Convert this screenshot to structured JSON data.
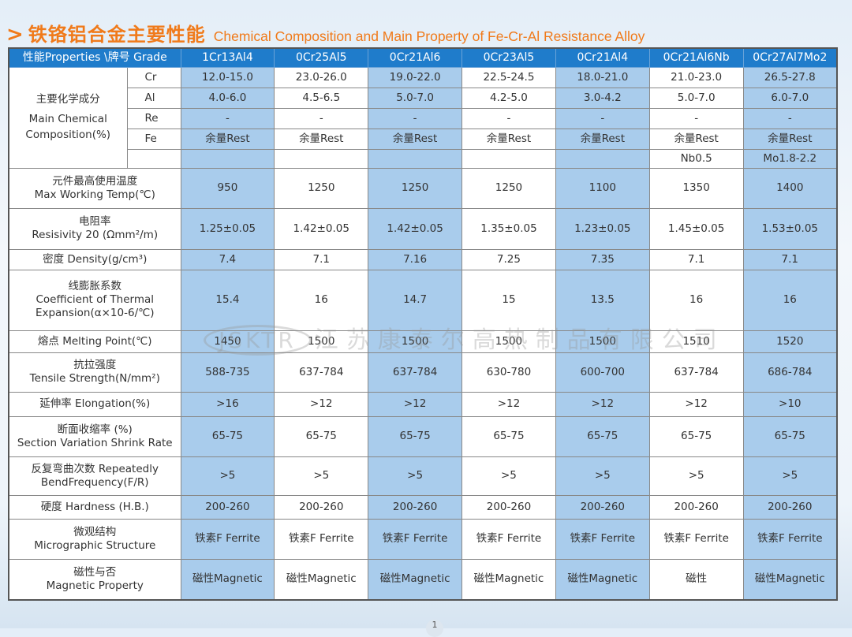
{
  "title": {
    "cn": "铁铬铝合金主要性能",
    "en": "Chemical Composition and Main Property of Fe-Cr-Al Resistance Alloy"
  },
  "header": {
    "label": "性能Properties \\牌号 Grade",
    "grades": [
      "1Cr13Al4",
      "0Cr25Al5",
      "0Cr21Al6",
      "0Cr23Al5",
      "0Cr21Al4",
      "0Cr21Al6Nb",
      "0Cr27Al7Mo2"
    ]
  },
  "composition": {
    "label_cn": "主要化学成分",
    "label_en1": "Main Chemical",
    "label_en2": "Composition(%)",
    "rows": [
      {
        "element": "Cr",
        "values": [
          "12.0-15.0",
          "23.0-26.0",
          "19.0-22.0",
          "22.5-24.5",
          "18.0-21.0",
          "21.0-23.0",
          "26.5-27.8"
        ]
      },
      {
        "element": "Al",
        "values": [
          "4.0-6.0",
          "4.5-6.5",
          "5.0-7.0",
          "4.2-5.0",
          "3.0-4.2",
          "5.0-7.0",
          "6.0-7.0"
        ]
      },
      {
        "element": "Re",
        "values": [
          "-",
          "-",
          "-",
          "-",
          "-",
          "-",
          "-"
        ]
      },
      {
        "element": "Fe",
        "values": [
          "余量Rest",
          "余量Rest",
          "余量Rest",
          "余量Rest",
          "余量Rest",
          "余量Rest",
          "余量Rest"
        ]
      },
      {
        "element": "",
        "values": [
          "",
          "",
          "",
          "",
          "",
          "Nb0.5",
          "Mo1.8-2.2"
        ]
      }
    ]
  },
  "properties": [
    {
      "cn": "元件最高使用温度",
      "en": "Max Working Temp(℃)",
      "values": [
        "950",
        "1250",
        "1250",
        "1250",
        "1100",
        "1350",
        "1400"
      ]
    },
    {
      "cn": "电阻率",
      "en": "Resisivity 20 (Ωmm²/m)",
      "values": [
        "1.25±0.05",
        "1.42±0.05",
        "1.42±0.05",
        "1.35±0.05",
        "1.23±0.05",
        "1.45±0.05",
        "1.53±0.05"
      ]
    },
    {
      "cn": "密度  Density(g/cm³)",
      "en": "",
      "values": [
        "7.4",
        "7.1",
        "7.16",
        "7.25",
        "7.35",
        "7.1",
        "7.1"
      ]
    },
    {
      "cn": "线膨胀系数",
      "en": "Coefficient of Thermal Expansion(α×10-6/℃)",
      "values": [
        "15.4",
        "16",
        "14.7",
        "15",
        "13.5",
        "16",
        "16"
      ]
    },
    {
      "cn": "熔点  Melting Point(℃)",
      "en": "",
      "values": [
        "1450",
        "1500",
        "1500",
        "1500",
        "1500",
        "1510",
        "1520"
      ]
    },
    {
      "cn": "抗拉强度",
      "en": "Tensile Strength(N/mm²)",
      "values": [
        "588-735",
        "637-784",
        "637-784",
        "630-780",
        "600-700",
        "637-784",
        "686-784"
      ]
    },
    {
      "cn": "延伸率  Elongation(%)",
      "en": "",
      "values": [
        ">16",
        ">12",
        ">12",
        ">12",
        ">12",
        ">12",
        ">10"
      ]
    },
    {
      "cn": "断面收缩率  (%)",
      "en": "Section Variation Shrink Rate",
      "values": [
        "65-75",
        "65-75",
        "65-75",
        "65-75",
        "65-75",
        "65-75",
        "65-75"
      ]
    },
    {
      "cn": "反复弯曲次数  Repeatedly",
      "en": "BendFrequency(F/R)",
      "values": [
        ">5",
        ">5",
        ">5",
        ">5",
        ">5",
        ">5",
        ">5"
      ]
    },
    {
      "cn": "硬度  Hardness (H.B.)",
      "en": "",
      "values": [
        "200-260",
        "200-260",
        "200-260",
        "200-260",
        "200-260",
        "200-260",
        "200-260"
      ]
    },
    {
      "cn": "微观结构",
      "en": "Micrographic Structure",
      "values": [
        "铁素F Ferrite",
        "铁素F Ferrite",
        "铁素F Ferrite",
        "铁素F Ferrite",
        "铁素F Ferrite",
        "铁素F Ferrite",
        "铁素F Ferrite"
      ]
    },
    {
      "cn": "磁性与否",
      "en": "Magnetic Property",
      "values": [
        "磁性Magnetic",
        "磁性Magnetic",
        "磁性Magnetic",
        "磁性Magnetic",
        "磁性Magnetic",
        "磁性",
        "磁性Magnetic"
      ]
    }
  ],
  "watermark": {
    "logo": "JSKTR",
    "text": "江苏康泰尔高热制品有限公司"
  },
  "page_number": "1",
  "colors": {
    "title": "#f07a1a",
    "header": "#1f7ccb",
    "highlight_column": "#a9ccec"
  }
}
